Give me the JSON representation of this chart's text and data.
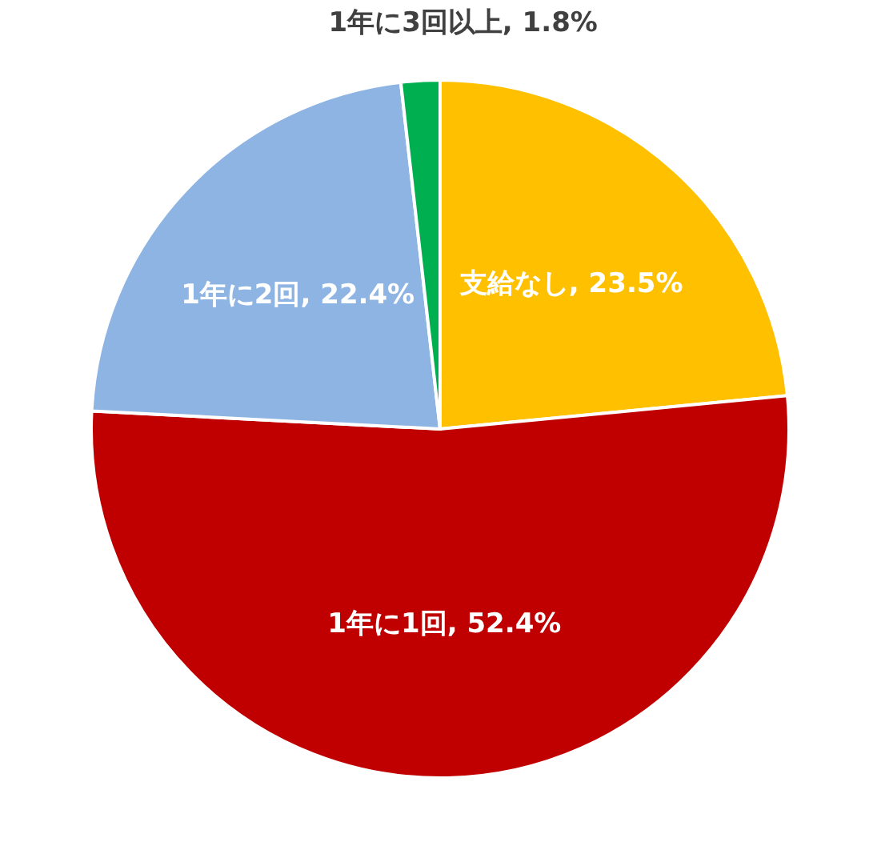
{
  "chart_data": {
    "type": "pie",
    "categories": [
      "支給なし",
      "1年に1回",
      "1年に2回",
      "1年に3回以上"
    ],
    "values": [
      23.5,
      52.4,
      22.4,
      1.8
    ],
    "value_labels": [
      "23.5%",
      "52.4%",
      "22.4%",
      "1.8%"
    ],
    "colors": [
      "#ffc000",
      "#c00000",
      "#8eb4e3",
      "#00b050"
    ],
    "legend": false
  }
}
